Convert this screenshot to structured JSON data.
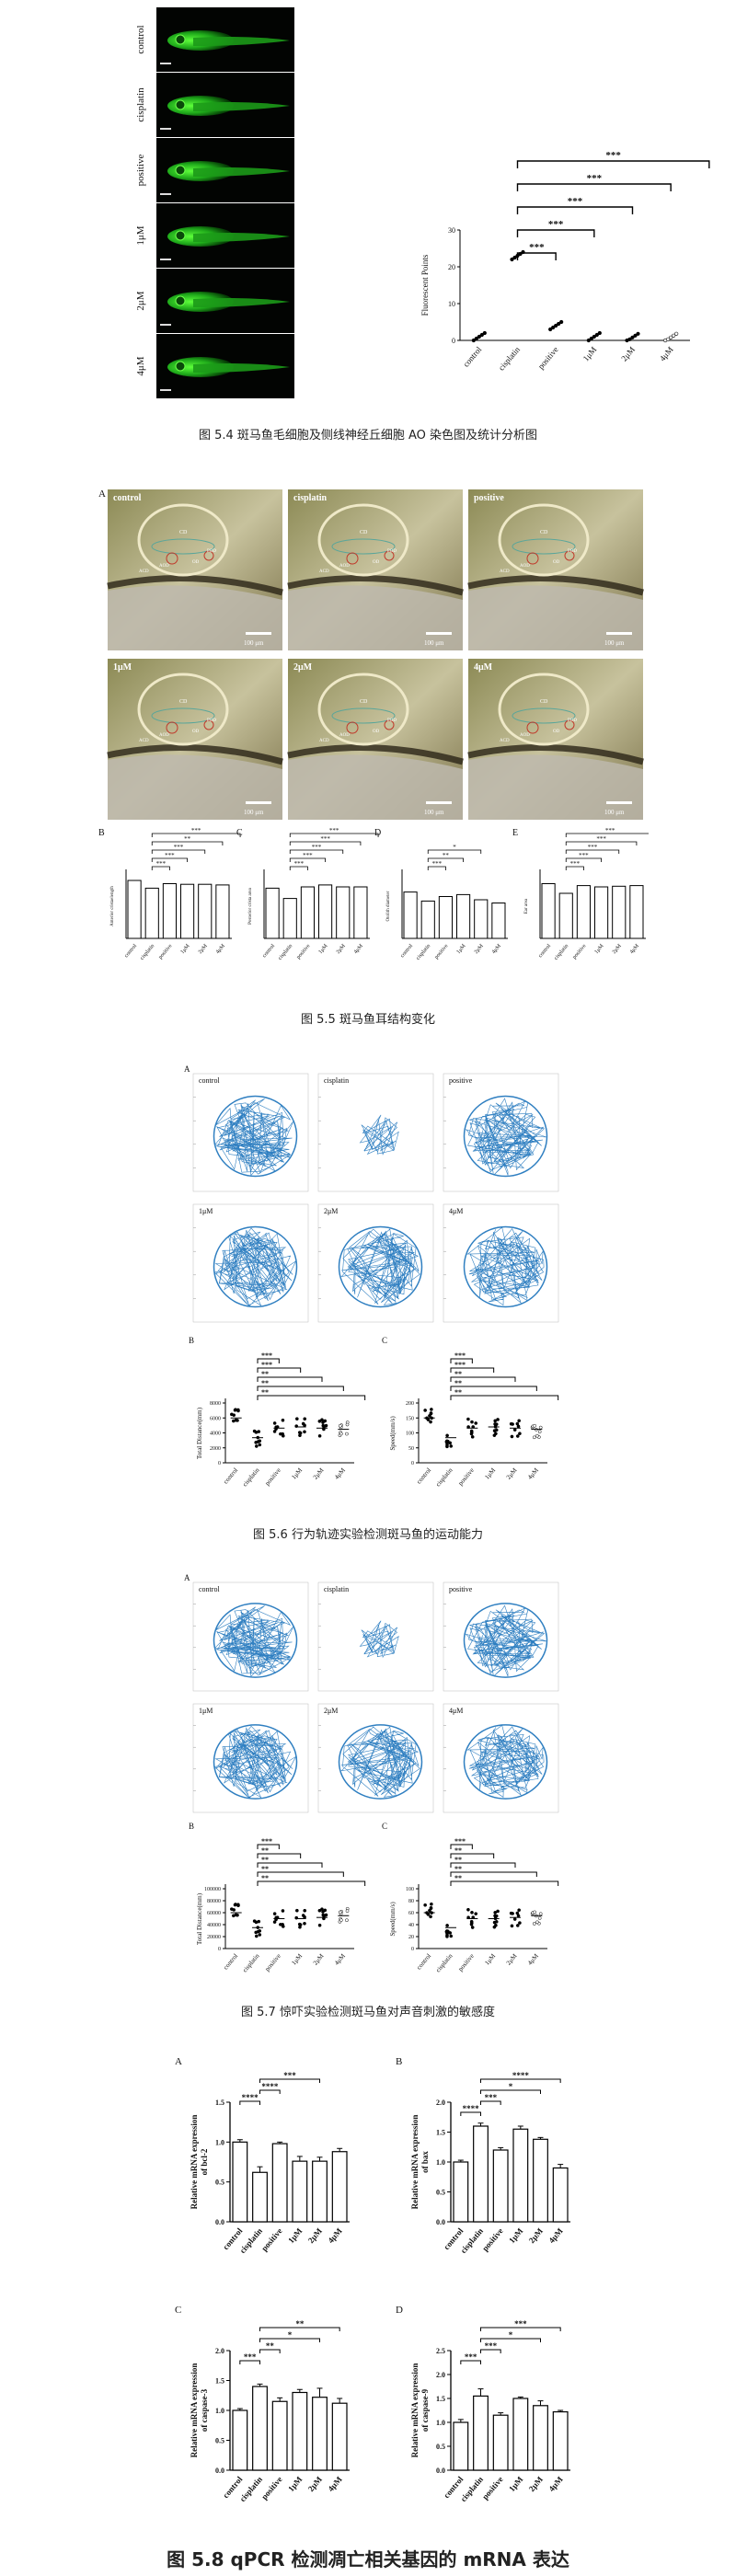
{
  "fig54": {
    "caption": "图 5.4 斑马鱼毛细胞及侧线神经丘细胞 AO 染色图及统计分析图",
    "rows": [
      "control",
      "cisplatin",
      "positive",
      "1μM",
      "2μM",
      "4μM"
    ],
    "sig": [
      "***",
      "***",
      "***",
      "***",
      "***"
    ],
    "ylabel": "Fluorescent Points",
    "yticks": [
      "0",
      "10",
      "20",
      "30"
    ],
    "xticks": [
      "control",
      "cisplatin",
      "positive",
      "1μM",
      "2μM",
      "4μM"
    ]
  },
  "fig55": {
    "caption": "图 5.5 斑马鱼耳结构变化",
    "labelA": "A",
    "panels": [
      "control",
      "cisplatin",
      "positive",
      "1μM",
      "2μM",
      "4μM"
    ],
    "structures": [
      "CD",
      "ACD",
      "AOD",
      "POD",
      "OD"
    ],
    "scale": "100 μm",
    "bars": [
      {
        "label": "B",
        "ylabel": "Anterior cristaelength",
        "sig": [
          "***",
          "***",
          "***",
          "**",
          "***"
        ]
      },
      {
        "label": "C",
        "ylabel": "Posterior crista area",
        "sig": [
          "***",
          "***",
          "***",
          "***",
          "***"
        ]
      },
      {
        "label": "D",
        "ylabel": "Otolith diameter",
        "sig": [
          "***",
          "**",
          "*"
        ]
      },
      {
        "label": "E",
        "ylabel": "Ear area",
        "sig": [
          "***",
          "***",
          "***",
          "***",
          "***"
        ]
      }
    ],
    "xticks": [
      "control",
      "cisplatin",
      "positive",
      "1μM",
      "2μM",
      "4μM"
    ]
  },
  "fig56": {
    "caption": "图 5.6 行为轨迹实验检测斑马鱼的运动能力",
    "labelA": "A",
    "tracks": [
      "control",
      "cisplatin",
      "positive",
      "1μM",
      "2μM",
      "4μM"
    ],
    "B": {
      "label": "B",
      "ylabel": "Total Distance(mm)",
      "yticks": [
        "0",
        "2000",
        "4000",
        "6000",
        "8000"
      ],
      "sig": [
        "***",
        "***",
        "**",
        "**",
        "**"
      ]
    },
    "C": {
      "label": "C",
      "ylabel": "Speed(mm/s)",
      "yticks": [
        "0",
        "50",
        "100",
        "150",
        "200"
      ],
      "sig": [
        "***",
        "***",
        "**",
        "**",
        "**"
      ]
    },
    "xticks": [
      "control",
      "cisplatin",
      "positive",
      "1μM",
      "2μM",
      "4μM"
    ]
  },
  "fig57": {
    "caption": "图 5.7 惊吓实验检测斑马鱼对声音刺激的敏感度",
    "labelA": "A",
    "tracks": [
      "control",
      "cisplatin",
      "positive",
      "1μM",
      "2μM",
      "4μM"
    ],
    "B": {
      "label": "B",
      "ylabel": "Total Distance(mm)",
      "yticks": [
        "0",
        "20000",
        "40000",
        "60000",
        "80000",
        "100000"
      ],
      "sig": [
        "***",
        "**",
        "**",
        "**",
        "**"
      ]
    },
    "C": {
      "label": "C",
      "ylabel": "Speed(mm/s)",
      "yticks": [
        "0",
        "20",
        "40",
        "60",
        "80",
        "100"
      ],
      "sig": [
        "***",
        "**",
        "**",
        "**",
        "**"
      ]
    },
    "xticks": [
      "control",
      "cisplatin",
      "positive",
      "1μM",
      "2μM",
      "4μM"
    ]
  },
  "fig58": {
    "caption": "图 5.8 qPCR 检测凋亡相关基因的 mRNA 表达",
    "xticks": [
      "control",
      "cisplatin",
      "positive",
      "1μM",
      "2μM",
      "4μM"
    ],
    "panels": [
      {
        "label": "A",
        "ylabel": "Relative mRNA expression of bcl-2",
        "yticks": [
          "0.0",
          "0.5",
          "1.0",
          "1.5"
        ],
        "ymax": 1.5,
        "values": [
          1.0,
          0.62,
          0.98,
          0.76,
          0.76,
          0.88
        ],
        "errors": [
          0.03,
          0.07,
          0.02,
          0.06,
          0.05,
          0.04
        ],
        "sig": [
          "****",
          "****",
          "***"
        ]
      },
      {
        "label": "B",
        "ylabel": "Relative mRNA expression of bax",
        "yticks": [
          "0.0",
          "0.5",
          "1.0",
          "1.5",
          "2.0"
        ],
        "ymax": 2.0,
        "values": [
          1.0,
          1.6,
          1.2,
          1.55,
          1.38,
          0.9
        ],
        "errors": [
          0.03,
          0.05,
          0.04,
          0.05,
          0.03,
          0.06
        ],
        "sig": [
          "****",
          "***",
          "*",
          "****"
        ]
      },
      {
        "label": "C",
        "ylabel": "Relative mRNA expression of caspase-3",
        "yticks": [
          "0.0",
          "0.5",
          "1.0",
          "1.5",
          "2.0"
        ],
        "ymax": 2.0,
        "values": [
          1.0,
          1.4,
          1.15,
          1.3,
          1.22,
          1.12
        ],
        "errors": [
          0.03,
          0.04,
          0.06,
          0.05,
          0.15,
          0.08
        ],
        "sig": [
          "***",
          "**",
          "*",
          "**"
        ]
      },
      {
        "label": "D",
        "ylabel": "Relative mRNA expression of caspase-9",
        "yticks": [
          "0.0",
          "0.5",
          "1.0",
          "1.5",
          "2.0",
          "2.5"
        ],
        "ymax": 2.5,
        "values": [
          1.0,
          1.55,
          1.15,
          1.5,
          1.35,
          1.22
        ],
        "errors": [
          0.06,
          0.15,
          0.05,
          0.03,
          0.1,
          0.03
        ],
        "sig": [
          "***",
          "***",
          "*",
          "***"
        ]
      }
    ]
  }
}
